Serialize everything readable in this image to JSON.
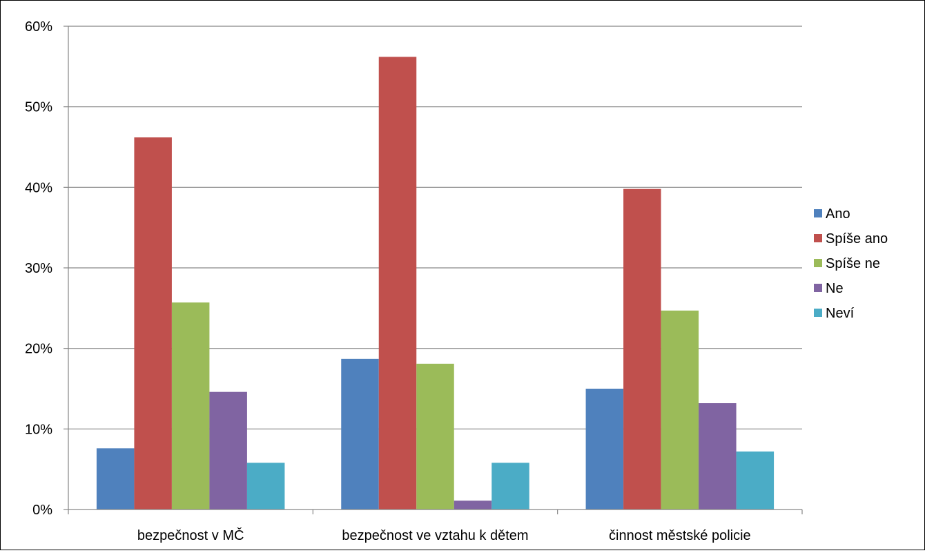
{
  "chart_data": {
    "type": "bar",
    "categories": [
      "bezpečnost v MČ",
      "bezpečnost ve vztahu k dětem",
      "činnost městské policie"
    ],
    "series": [
      {
        "name": "Ano",
        "color": "#4F81BD",
        "values": [
          7.6,
          18.7,
          15.0
        ]
      },
      {
        "name": "Spíše ano",
        "color": "#C0504D",
        "values": [
          46.2,
          56.2,
          39.8
        ]
      },
      {
        "name": "Spíše ne",
        "color": "#9BBB59",
        "values": [
          25.7,
          18.1,
          24.7
        ]
      },
      {
        "name": "Ne",
        "color": "#8064A2",
        "values": [
          14.6,
          1.1,
          13.2
        ]
      },
      {
        "name": "Neví",
        "color": "#4BACC6",
        "values": [
          5.8,
          5.8,
          7.2
        ]
      }
    ],
    "yticks": [
      "0%",
      "10%",
      "20%",
      "30%",
      "40%",
      "50%",
      "60%"
    ],
    "ylim": [
      0,
      60
    ],
    "y_unit": "%",
    "grid": true,
    "legend_position": "right"
  }
}
